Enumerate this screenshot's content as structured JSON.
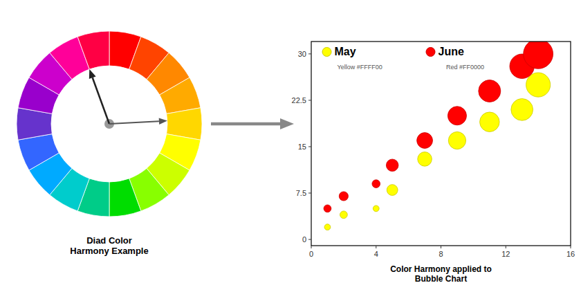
{
  "chart_data": [
    {
      "type": "color_wheel",
      "title": "Diad Color\nHarmony Example",
      "colors": [
        "#FF0000",
        "#FF4400",
        "#FF8800",
        "#FFAA00",
        "#FFD700",
        "#FFFF00",
        "#CCFF00",
        "#88FF00",
        "#00DD00",
        "#00CC88",
        "#00CCCC",
        "#00AAFF",
        "#3366FF",
        "#6633CC",
        "#9900CC",
        "#CC00CC",
        "#FF0099",
        "#FF0044"
      ]
    },
    {
      "type": "bubble",
      "title": "Color Harmony applied to\nBubble Chart",
      "xlim": [
        0,
        16
      ],
      "ylim": [
        -1,
        32
      ],
      "xticks": [
        0,
        4,
        8,
        12,
        16
      ],
      "yticks": [
        0,
        7.5,
        15,
        22.5,
        30
      ],
      "grid": false,
      "legend": "upper left",
      "annotations": [
        "Yellow #FFFF00",
        "Red #FF0000"
      ],
      "series": [
        {
          "name": "May",
          "color": "#FFFF00",
          "x": [
            1,
            2,
            4,
            5,
            7,
            9,
            11,
            13,
            14
          ],
          "values": [
            2,
            4,
            5,
            8,
            13,
            16,
            19,
            21,
            25
          ],
          "sizes": [
            40,
            60,
            40,
            130,
            220,
            330,
            420,
            520,
            640
          ]
        },
        {
          "name": "June",
          "color": "#FF0000",
          "x": [
            1,
            2,
            4,
            5,
            7,
            9,
            11,
            13,
            14
          ],
          "values": [
            5,
            7,
            9,
            12,
            16,
            20,
            24,
            28,
            30
          ],
          "sizes": [
            60,
            90,
            70,
            160,
            270,
            380,
            530,
            650,
            950
          ]
        }
      ]
    }
  ]
}
